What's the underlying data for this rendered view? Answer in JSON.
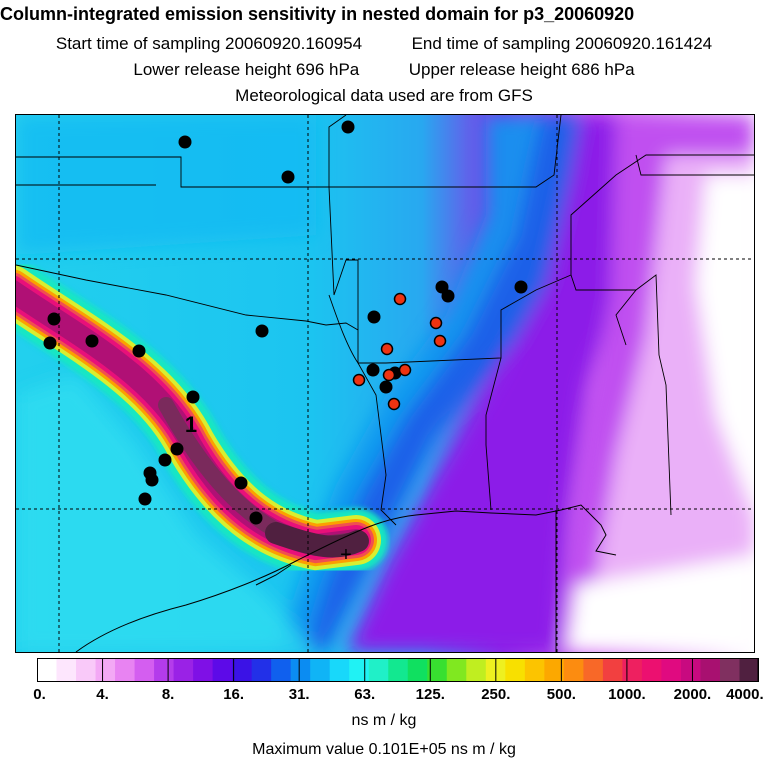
{
  "header": {
    "title": "Column-integrated emission sensitivity in nested domain for p3_20060920",
    "start_label": "Start time of sampling 20060920.160954",
    "end_label": "End time of sampling 20060920.161424",
    "lower_label": "Lower release height  696 hPa",
    "upper_label": "Upper release height  686 hPa",
    "met_label": "Meteorological data used are from GFS"
  },
  "map": {
    "plume_label": "1",
    "source_marker": "+"
  },
  "colorbar": {
    "tick_labels": [
      "0.",
      "4.",
      "8.",
      "16.",
      "31.",
      "63.",
      "125.",
      "250.",
      "500.",
      "1000.",
      "2000.",
      "4000."
    ],
    "colors": [
      "#ffffff",
      "#fde6fd",
      "#f9c9f9",
      "#f3a8f5",
      "#e883f2",
      "#d45ef0",
      "#b43ceb",
      "#9a22e6",
      "#7f10e6",
      "#5d0ae8",
      "#3b12e6",
      "#2230e8",
      "#1060ee",
      "#0b8cf2",
      "#10b4f6",
      "#18d8fa",
      "#20f2f4",
      "#20f0c8",
      "#12e890",
      "#10e060",
      "#38e030",
      "#80e820",
      "#c0ee20",
      "#eef020",
      "#f8e000",
      "#fcc400",
      "#fca800",
      "#fc8c10",
      "#f86828",
      "#f24040",
      "#ee2060",
      "#ec1070",
      "#e00a80",
      "#c80a80",
      "#a81070",
      "#803060",
      "#502040"
    ],
    "unit": "ns m / kg",
    "max_label": "Maximum value  0.101E+05 ns m / kg"
  }
}
